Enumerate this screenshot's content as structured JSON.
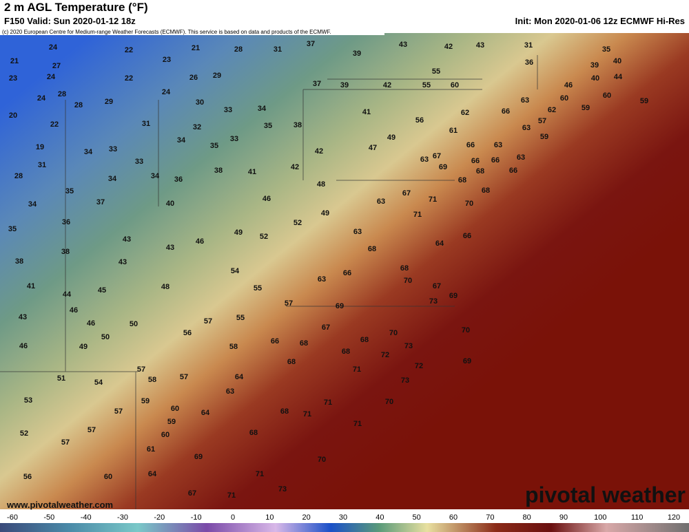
{
  "header": {
    "title": "2 m AGL Temperature (°F)",
    "valid": "F150 Valid: Sun 2020-01-12 18z",
    "init": "Init: Mon 2020-01-06 12z ECMWF Hi-Res",
    "credit": "(c) 2020 European Centre for Medium-range Weather Forecasts (ECMWF). This service is based on data and products of the ECMWF."
  },
  "map": {
    "labels": [
      24,
      22,
      21,
      28,
      31,
      37,
      39,
      43,
      42,
      43,
      31,
      36,
      35,
      21,
      27,
      23,
      23,
      24,
      22,
      26,
      29,
      39,
      40,
      55,
      40,
      44,
      24,
      28,
      28,
      29,
      24,
      30,
      33,
      34,
      37,
      39,
      42,
      55,
      60,
      46,
      20,
      22,
      31,
      32,
      34,
      35,
      38,
      41,
      56,
      62,
      66,
      63,
      60,
      59,
      60,
      59,
      62,
      57,
      63,
      59,
      19,
      34,
      33,
      35,
      33,
      42,
      47,
      49,
      61,
      66,
      63,
      63,
      31,
      28,
      34,
      33,
      34,
      36,
      38,
      41,
      42,
      63,
      67,
      69,
      68,
      66,
      66,
      66,
      35,
      48,
      67,
      34,
      37,
      40,
      46,
      63,
      71,
      68,
      68,
      70,
      49,
      36,
      35,
      52,
      71,
      63,
      43,
      46,
      49,
      52,
      64,
      66,
      68,
      38,
      43,
      38,
      43,
      54,
      66,
      68,
      63,
      70,
      67,
      41,
      45,
      48,
      55,
      69,
      73,
      44,
      57,
      69,
      46,
      43,
      55,
      57,
      50,
      46,
      67,
      70,
      70,
      56,
      50,
      66,
      68,
      68,
      73,
      46,
      49,
      58,
      68,
      72,
      69,
      68,
      72,
      71,
      57,
      51,
      54,
      58,
      57,
      64,
      73,
      63,
      53,
      59,
      70,
      71,
      57,
      60,
      64,
      68,
      71,
      59,
      71,
      57,
      52,
      60,
      68,
      57,
      61,
      69,
      70,
      56,
      60,
      64,
      71,
      67,
      71,
      73
    ],
    "website": "www.pivotalweather.com",
    "brand": "pivotal weather"
  },
  "colorbar": {
    "ticks": [
      -60,
      -50,
      -40,
      -30,
      -20,
      -10,
      0,
      10,
      20,
      30,
      40,
      50,
      60,
      70,
      80,
      90,
      100,
      110,
      120
    ]
  }
}
